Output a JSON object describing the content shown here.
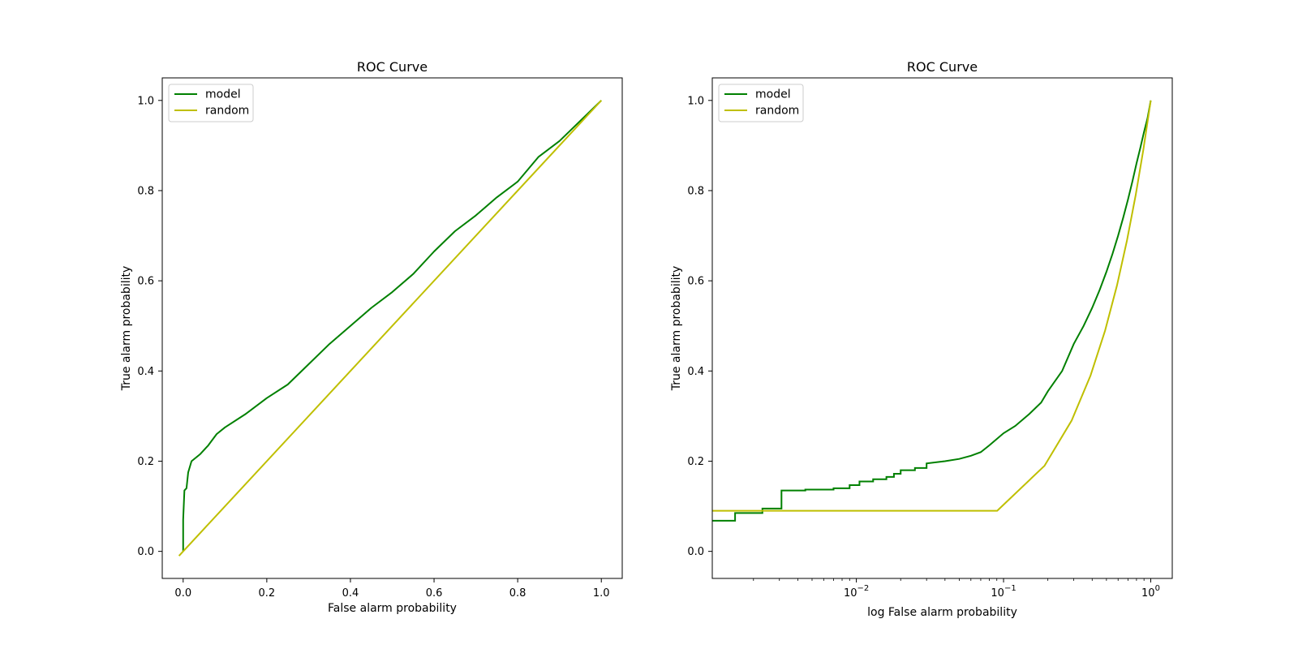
{
  "chart_data": [
    {
      "type": "line",
      "title": "ROC Curve",
      "xlabel": "False alarm probability",
      "ylabel": "True alarm probability",
      "xscale": "linear",
      "xlim": [
        -0.05,
        1.05
      ],
      "ylim": [
        -0.06,
        1.05
      ],
      "xticks": [
        0.0,
        0.2,
        0.4,
        0.6,
        0.8,
        1.0
      ],
      "xtick_labels": [
        "0.0",
        "0.2",
        "0.4",
        "0.6",
        "0.8",
        "1.0"
      ],
      "yticks": [
        0.0,
        0.2,
        0.4,
        0.6,
        0.8,
        1.0
      ],
      "ytick_labels": [
        "0.0",
        "0.2",
        "0.4",
        "0.6",
        "0.8",
        "1.0"
      ],
      "grid": false,
      "legend": "upper left",
      "series": [
        {
          "name": "model",
          "color": "#008000",
          "step": false,
          "points": [
            [
              0.0,
              0.0
            ],
            [
              0.0,
              0.07
            ],
            [
              0.003,
              0.135
            ],
            [
              0.008,
              0.14
            ],
            [
              0.012,
              0.175
            ],
            [
              0.02,
              0.2
            ],
            [
              0.04,
              0.215
            ],
            [
              0.06,
              0.235
            ],
            [
              0.08,
              0.26
            ],
            [
              0.1,
              0.275
            ],
            [
              0.15,
              0.305
            ],
            [
              0.2,
              0.34
            ],
            [
              0.25,
              0.37
            ],
            [
              0.3,
              0.415
            ],
            [
              0.35,
              0.46
            ],
            [
              0.4,
              0.5
            ],
            [
              0.45,
              0.54
            ],
            [
              0.5,
              0.575
            ],
            [
              0.55,
              0.615
            ],
            [
              0.6,
              0.665
            ],
            [
              0.65,
              0.71
            ],
            [
              0.7,
              0.745
            ],
            [
              0.75,
              0.785
            ],
            [
              0.8,
              0.82
            ],
            [
              0.85,
              0.875
            ],
            [
              0.9,
              0.91
            ],
            [
              0.95,
              0.955
            ],
            [
              1.0,
              1.0
            ]
          ]
        },
        {
          "name": "random",
          "color": "#bfbf00",
          "step": false,
          "points": [
            [
              -0.01,
              -0.01
            ],
            [
              1.0,
              1.0
            ]
          ]
        }
      ]
    },
    {
      "type": "line",
      "title": "ROC Curve",
      "xlabel": "log False alarm probability",
      "ylabel": "True alarm probability",
      "xscale": "log",
      "xlim": [
        0.00105,
        1.4
      ],
      "ylim": [
        -0.06,
        1.05
      ],
      "xticks": [
        0.01,
        0.1,
        1.0
      ],
      "xtick_labels": [
        {
          "base": "10",
          "exp": "−2"
        },
        {
          "base": "10",
          "exp": "−1"
        },
        {
          "base": "10",
          "exp": "0"
        }
      ],
      "yticks": [
        0.0,
        0.2,
        0.4,
        0.6,
        0.8,
        1.0
      ],
      "ytick_labels": [
        "0.0",
        "0.2",
        "0.4",
        "0.6",
        "0.8",
        "1.0"
      ],
      "grid": false,
      "legend": "upper left",
      "series": [
        {
          "name": "model",
          "color": "#008000",
          "step": true,
          "points": [
            [
              0.00105,
              0.068
            ],
            [
              0.0015,
              0.068
            ],
            [
              0.0015,
              0.085
            ],
            [
              0.0023,
              0.085
            ],
            [
              0.0023,
              0.095
            ],
            [
              0.0031,
              0.095
            ],
            [
              0.0031,
              0.135
            ],
            [
              0.0045,
              0.135
            ],
            [
              0.0045,
              0.137
            ],
            [
              0.007,
              0.137
            ],
            [
              0.007,
              0.14
            ],
            [
              0.009,
              0.14
            ],
            [
              0.009,
              0.147
            ],
            [
              0.0105,
              0.147
            ],
            [
              0.0105,
              0.155
            ],
            [
              0.013,
              0.155
            ],
            [
              0.013,
              0.16
            ],
            [
              0.016,
              0.16
            ],
            [
              0.016,
              0.165
            ],
            [
              0.018,
              0.165
            ],
            [
              0.018,
              0.172
            ],
            [
              0.02,
              0.172
            ],
            [
              0.02,
              0.18
            ],
            [
              0.025,
              0.18
            ],
            [
              0.025,
              0.185
            ],
            [
              0.03,
              0.185
            ],
            [
              0.03,
              0.195
            ],
            [
              0.04,
              0.2
            ],
            [
              0.05,
              0.205
            ],
            [
              0.06,
              0.212
            ],
            [
              0.07,
              0.22
            ],
            [
              0.08,
              0.235
            ],
            [
              0.1,
              0.262
            ],
            [
              0.12,
              0.278
            ],
            [
              0.15,
              0.305
            ],
            [
              0.18,
              0.33
            ],
            [
              0.2,
              0.355
            ],
            [
              0.25,
              0.4
            ],
            [
              0.3,
              0.46
            ],
            [
              0.35,
              0.5
            ],
            [
              0.4,
              0.54
            ],
            [
              0.45,
              0.58
            ],
            [
              0.5,
              0.62
            ],
            [
              0.55,
              0.66
            ],
            [
              0.6,
              0.7
            ],
            [
              0.65,
              0.74
            ],
            [
              0.7,
              0.78
            ],
            [
              0.75,
              0.82
            ],
            [
              0.8,
              0.86
            ],
            [
              0.85,
              0.895
            ],
            [
              0.9,
              0.93
            ],
            [
              0.95,
              0.96
            ],
            [
              1.0,
              1.0
            ]
          ]
        },
        {
          "name": "random",
          "color": "#bfbf00",
          "step": false,
          "points": [
            [
              0.00105,
              0.09
            ],
            [
              0.0905,
              0.09
            ],
            [
              0.19,
              0.19
            ],
            [
              0.29,
              0.29
            ],
            [
              0.39,
              0.39
            ],
            [
              0.49,
              0.49
            ],
            [
              0.59,
              0.59
            ],
            [
              0.69,
              0.69
            ],
            [
              0.79,
              0.79
            ],
            [
              0.89,
              0.89
            ],
            [
              1.0,
              1.0
            ]
          ]
        }
      ]
    }
  ]
}
